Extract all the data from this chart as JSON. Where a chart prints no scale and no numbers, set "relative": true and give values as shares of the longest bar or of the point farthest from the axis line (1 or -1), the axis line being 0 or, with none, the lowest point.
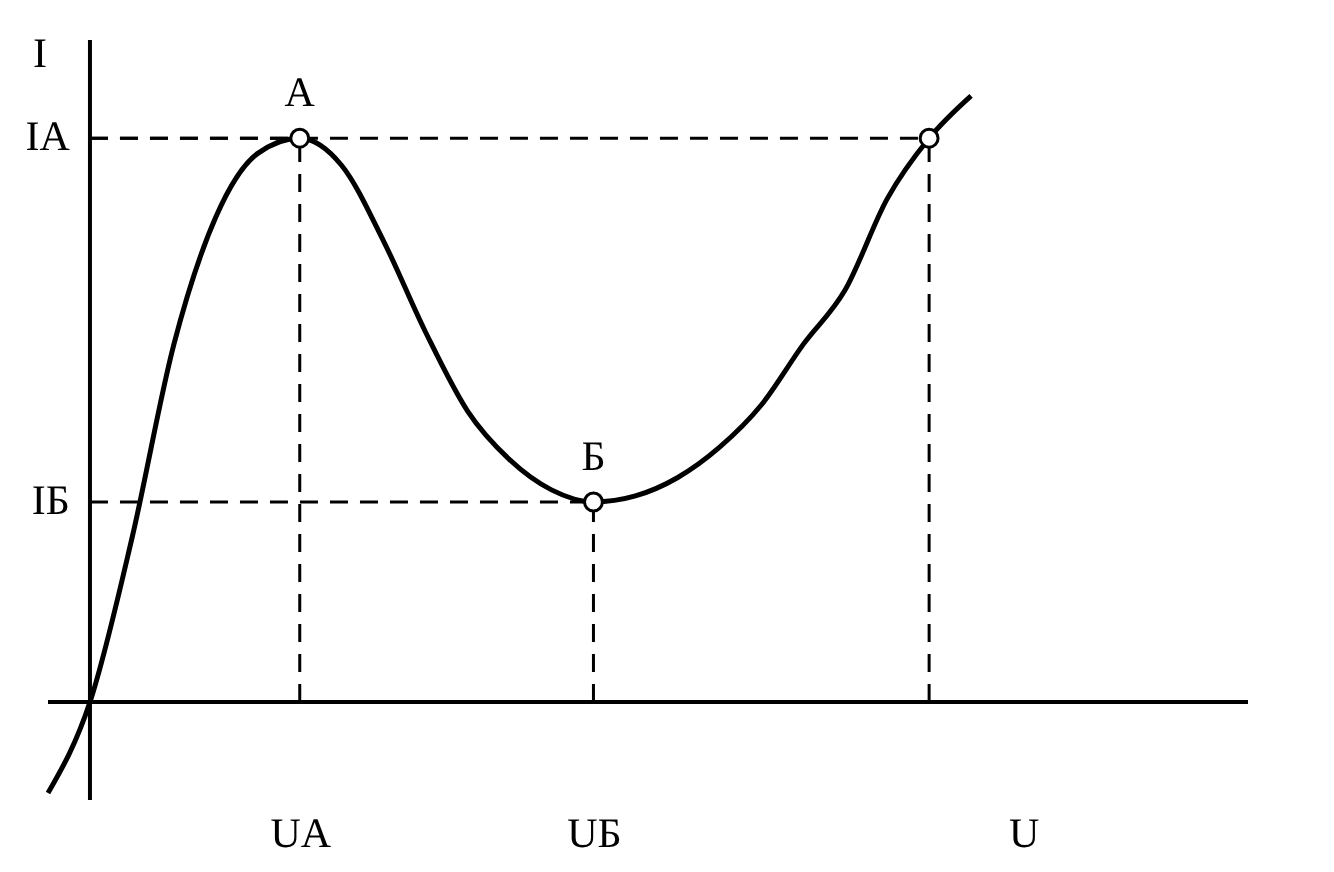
{
  "chart_data": {
    "type": "line",
    "relative": true,
    "xlabel": "U",
    "ylabel": "I",
    "categories": [
      null,
      null,
      null,
      null,
      null,
      null,
      "UА",
      null,
      null,
      null,
      null,
      null,
      null,
      "UБ",
      null,
      null,
      null,
      null,
      null,
      null,
      null,
      null,
      null,
      null,
      null,
      null,
      null,
      null,
      null
    ],
    "annotations": [
      "А",
      "Б",
      "IА",
      "IБ"
    ],
    "series": [
      {
        "type": "line",
        "color": "#000000",
        "marker": "none",
        "line_style": "solid",
        "values": [
          -0.15,
          0,
          0.27,
          0.59,
          0.8,
          0.905,
          0.93,
          0.885,
          0.76,
          0.61,
          0.48,
          0.4,
          0.35,
          0.33,
          0.34,
          0.37,
          0.42,
          0.49,
          0.59,
          0.68,
          0.83,
          0.93,
          1.0,
          null,
          null,
          null,
          null,
          null,
          null
        ]
      },
      {
        "type": "scatter",
        "color": "#000000",
        "marker": "circle",
        "line_style": "dashed",
        "values": [
          null,
          null,
          null,
          null,
          null,
          null,
          0.93,
          null,
          null,
          null,
          null,
          null,
          null,
          0.33,
          null,
          null,
          null,
          null,
          null,
          null,
          null,
          0.93,
          null,
          null,
          null,
          null,
          null,
          null,
          null
        ]
      }
    ]
  }
}
